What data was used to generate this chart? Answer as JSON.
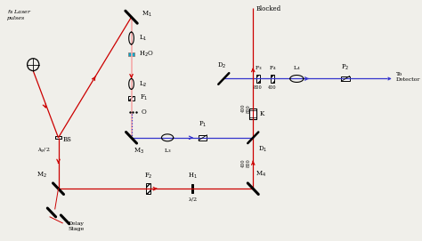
{
  "fig_width": 4.74,
  "fig_height": 2.71,
  "dpi": 100,
  "red_color": "#cc0000",
  "blue_color": "#3333cc",
  "pink_color": "#f5aaaa",
  "teal_color": "#00aacc",
  "bg_color": "#f0efea",
  "labels": {
    "fs_laser": "fs Laser\npulses",
    "M1": "M$_1$",
    "M2": "M$_2$",
    "M3": "M$_3$",
    "M4": "M$_4$",
    "L1": "L$_1$",
    "L2": "L$_2$",
    "L3": "L$_3$",
    "L4": "L$_4$",
    "BS": "BS",
    "F1": "F$_1$",
    "F2": "F$_2$",
    "F3": "F$_3$",
    "F4": "F$_4$",
    "H2O": "H$_2$O",
    "O": "O",
    "P1": "P$_1$",
    "P2": "P$_2$",
    "K": "K",
    "D1": "D$_1$",
    "D2": "D$_2$",
    "H1": "H$_1$",
    "lambda_half": "λ/2",
    "blocked": "Blocked",
    "delay_stage": "Delay\nStage",
    "to_detector": "To\nDetector",
    "ag2": "λg/2",
    "800": "800",
    "400": "400",
    "400_800": "400 800"
  }
}
